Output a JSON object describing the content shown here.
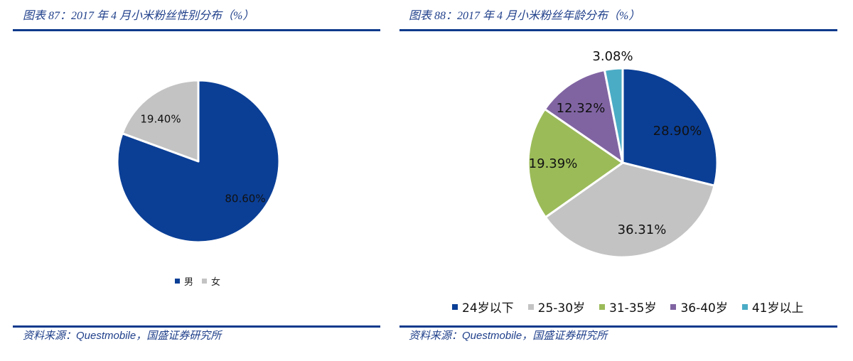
{
  "panels": [
    {
      "title": "图表 87：2017 年 4 月小米粉丝性别分布（%）",
      "source": "资料来源：Questmobile，国盛证券研究所"
    },
    {
      "title": "图表 88：2017 年 4 月小米粉丝年龄分布（%）",
      "source": "资料来源：Questmobile，国盛证券研究所"
    }
  ],
  "chart_data": [
    {
      "type": "pie",
      "title": "2017年4月小米粉丝性别分布（%）",
      "categories": [
        "男",
        "女"
      ],
      "values": [
        80.6,
        19.4
      ],
      "labels": [
        "80.60%",
        "19.40%"
      ],
      "colors": [
        "#0b3f96",
        "#c3c3c3"
      ],
      "legend_position": "bottom",
      "start_angle": "12 o'clock, clockwise"
    },
    {
      "type": "pie",
      "title": "2017年4月小米粉丝年龄分布（%）",
      "categories": [
        "24岁以下",
        "25-30岁",
        "31-35岁",
        "36-40岁",
        "41岁以上"
      ],
      "values": [
        28.9,
        36.31,
        19.39,
        12.32,
        3.08
      ],
      "labels": [
        "28.90%",
        "36.31%",
        "19.39%",
        "12.32%",
        "3.08%"
      ],
      "colors": [
        "#0b3f96",
        "#c3c3c3",
        "#9bbb59",
        "#8064a2",
        "#4bacc6"
      ],
      "legend_position": "bottom",
      "start_angle": "12 o'clock, clockwise"
    }
  ]
}
